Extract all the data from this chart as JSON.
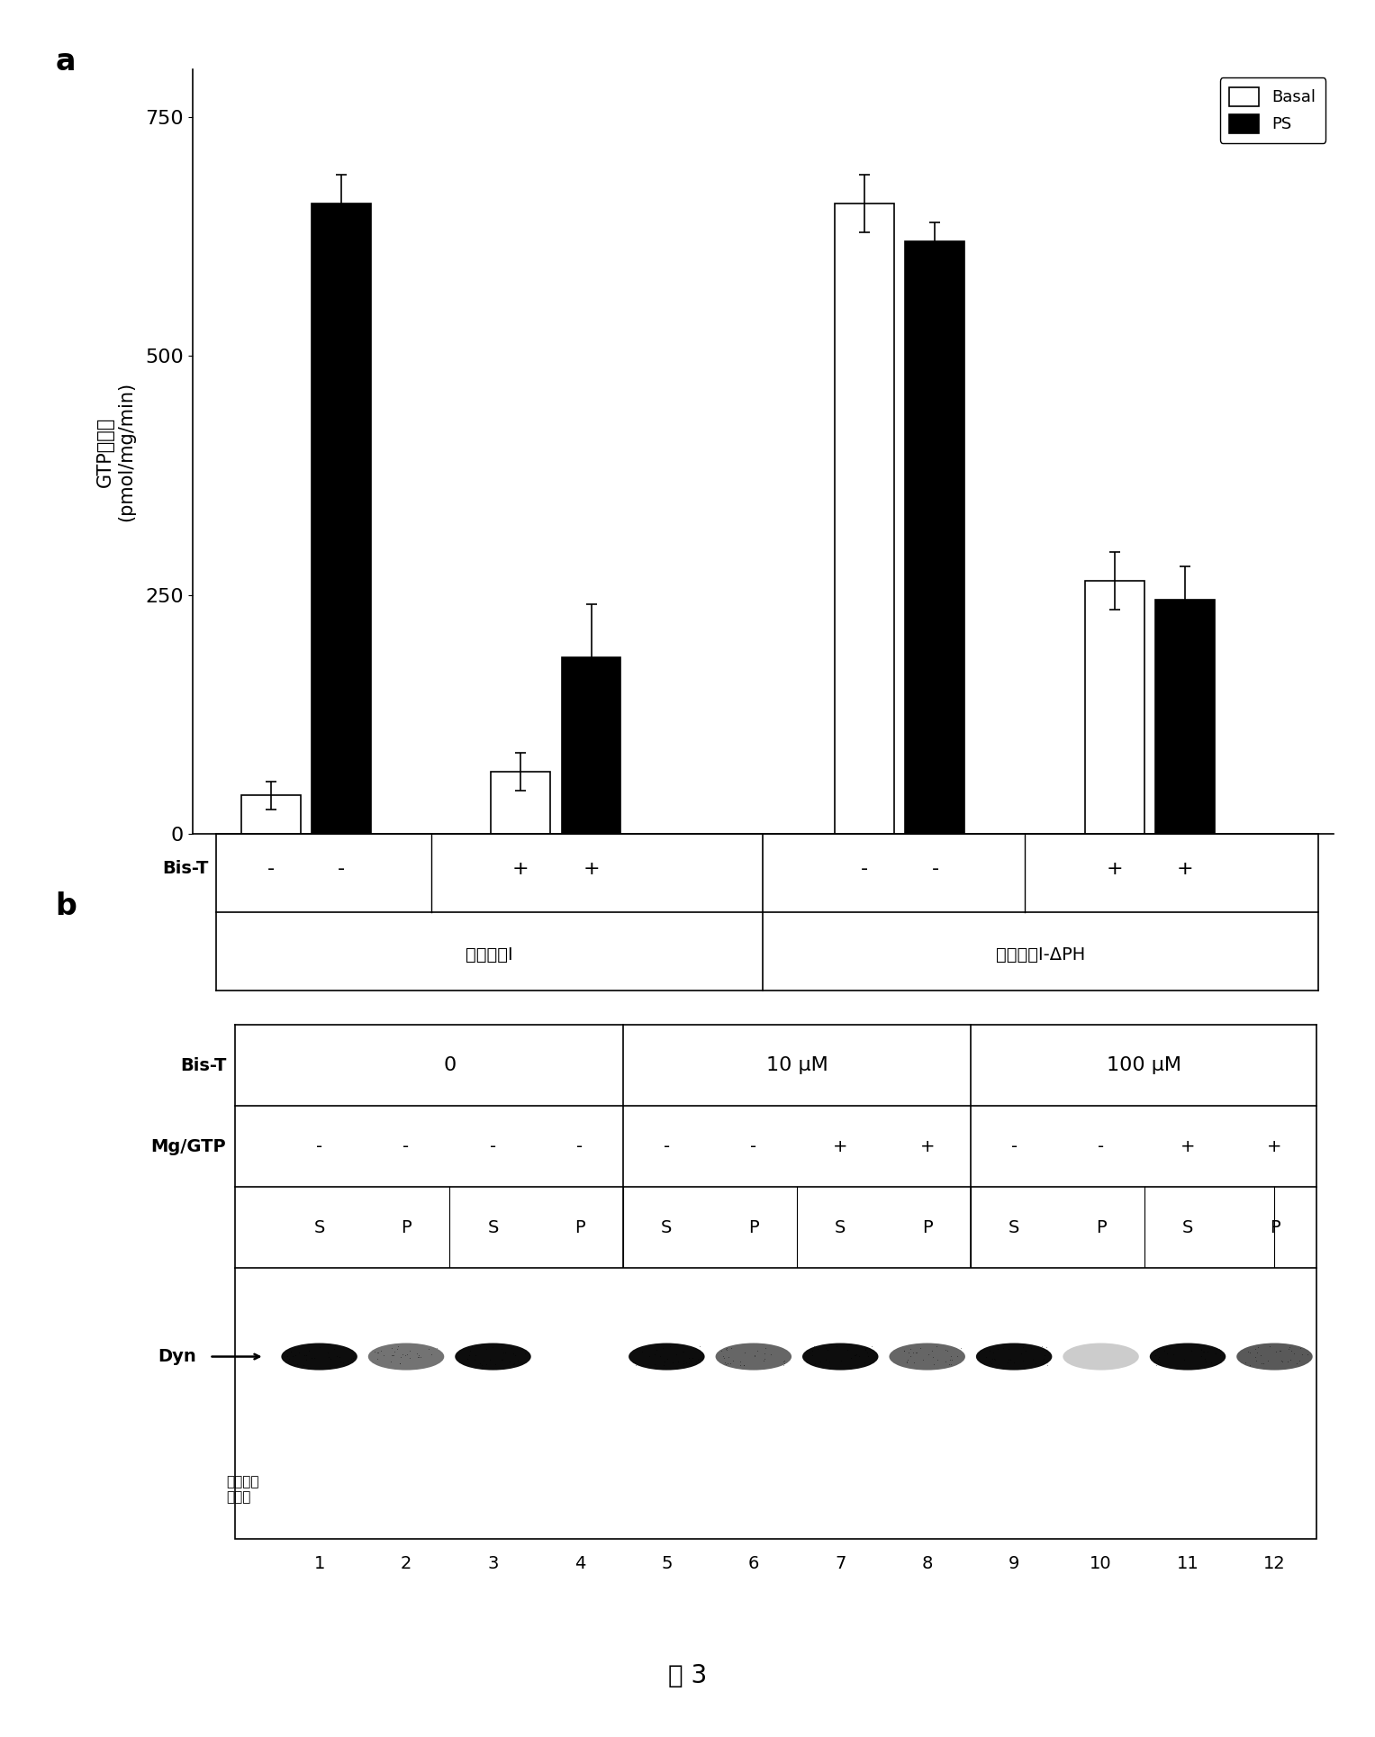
{
  "panel_a": {
    "groups": [
      {
        "label": "发动蛋白I",
        "bis_t_minus": {
          "basal": 40,
          "ps": 660,
          "basal_err": 15,
          "ps_err": 30
        },
        "bis_t_plus": {
          "basal": 65,
          "ps": 185,
          "basal_err": 20,
          "ps_err": 55
        }
      },
      {
        "label": "发动蛋白I-ΔPH",
        "bis_t_minus": {
          "basal": 660,
          "ps": 620,
          "basal_err": 30,
          "ps_err": 20
        },
        "bis_t_plus": {
          "basal": 265,
          "ps": 245,
          "basal_err": 30,
          "ps_err": 35
        }
      }
    ],
    "ylabel_line1": "GTP酶活性",
    "ylabel_line2": "(pmol/mg/min)",
    "yticks": [
      0,
      250,
      500,
      750
    ],
    "ylim": [
      0,
      800
    ],
    "legend_labels": [
      "Basal",
      "PS"
    ],
    "bis_t_labels": [
      "-",
      "-",
      "+",
      "+",
      "-",
      "-",
      "+",
      "+"
    ],
    "group_labels": [
      "发动蛋白I",
      "发动蛋白I-ΔPH"
    ],
    "bar_width": 0.38,
    "basal_color": "white",
    "ps_color": "black",
    "edgecolor": "black"
  },
  "panel_b": {
    "bis_t_groups": [
      "0",
      "10 μM",
      "100 μM"
    ],
    "mg_gtp_row": [
      "-",
      "-",
      "-",
      "-",
      "-",
      "-",
      "+",
      "+",
      "-",
      "-",
      "+",
      "+"
    ],
    "sp_row": [
      "S",
      "P",
      "S",
      "P",
      "S",
      "P",
      "S",
      "P",
      "S",
      "P",
      "S",
      "P"
    ],
    "lane_numbers": [
      "1",
      "2",
      "3",
      "4",
      "5",
      "6",
      "7",
      "8",
      "9",
      "10",
      "11",
      "12"
    ],
    "band_intensities": [
      0.95,
      0.55,
      0.95,
      0.0,
      0.95,
      0.6,
      0.95,
      0.6,
      0.95,
      0.2,
      0.95,
      0.65
    ],
    "dyn_label": "Dyn",
    "coomassie_label": "考马斯染\n色凝胶"
  },
  "figure_label": "图 3",
  "bg_color": "white"
}
